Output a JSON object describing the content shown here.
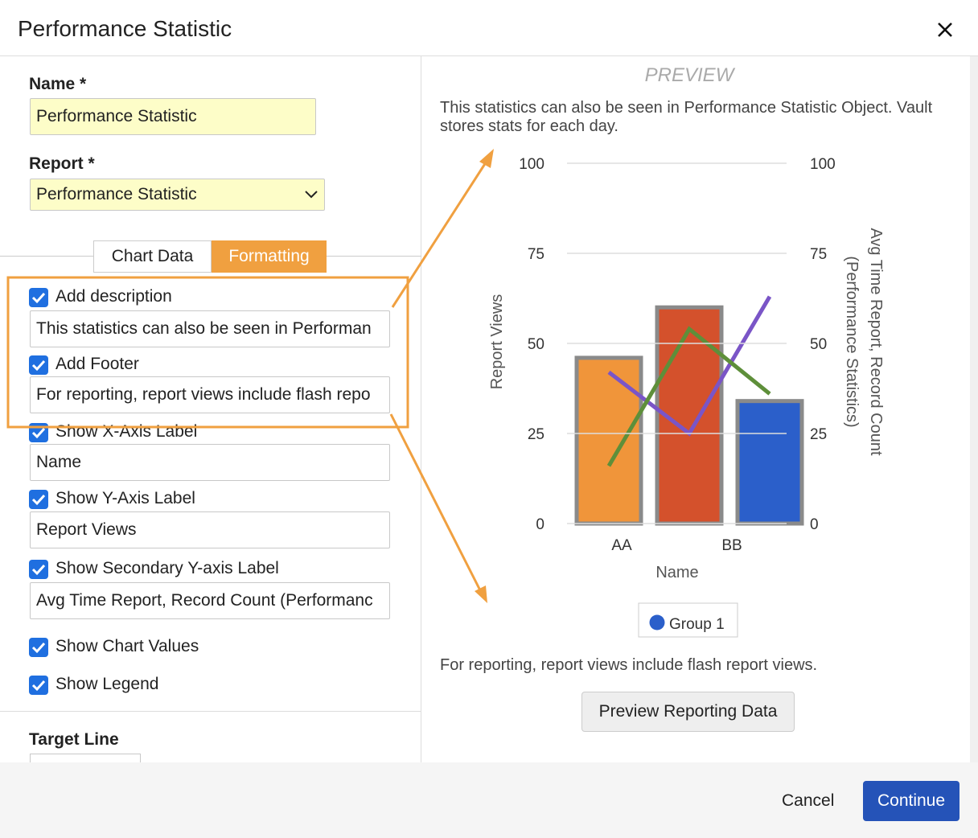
{
  "header": {
    "title": "Performance Statistic"
  },
  "form": {
    "name_label": "Name *",
    "name_value": "Performance Statistic",
    "report_label": "Report *",
    "report_value": "Performance Statistic",
    "tabs": [
      "Chart Data",
      "Formatting"
    ],
    "options": [
      {
        "label": "Add description",
        "input": "This statistics can also be seen in Performan"
      },
      {
        "label": "Add Footer",
        "input": "For reporting, report views include flash repo"
      },
      {
        "label": "Show X-Axis Label",
        "input": "Name"
      },
      {
        "label": "Show Y-Axis Label",
        "input": "Report Views"
      },
      {
        "label": "Show Secondary Y-axis Label",
        "input": "Avg Time Report, Record Count (Performanc"
      },
      {
        "label": "Show Chart Values"
      },
      {
        "label": "Show Legend"
      }
    ],
    "target_label": "Target Line"
  },
  "preview": {
    "title": "PREVIEW",
    "description": "This statistics can also be seen in Performance Statistic Object. Vault stores stats for each day.",
    "footer": "For reporting, report views include flash report views.",
    "button": "Preview Reporting Data"
  },
  "chart_data": {
    "type": "bar",
    "categories": [
      "AA",
      null,
      "BB"
    ],
    "xlabel": "Name",
    "ylabel": "Report Views",
    "y2label": [
      "Avg Time Report, Record Count",
      "(Performance Statistics)"
    ],
    "ylim": [
      0,
      100
    ],
    "yticks": [
      0,
      25,
      50,
      75,
      100
    ],
    "y2lim": [
      0,
      100
    ],
    "y2ticks": [
      0,
      25,
      50,
      75,
      100
    ],
    "grid": true,
    "series": [
      {
        "name": "Group 1",
        "type": "bar",
        "color": "#2b5fca",
        "colors": [
          "#f0953a",
          "#d4512c",
          "#2b5fca"
        ],
        "values": [
          46,
          60,
          34
        ]
      },
      {
        "type": "line",
        "axis": "y2",
        "color": "#7a55c7",
        "values": [
          42,
          25,
          63
        ]
      },
      {
        "type": "line",
        "axis": "y2",
        "color": "#5e8f3a",
        "values": [
          16,
          54,
          36
        ]
      }
    ]
  },
  "footer": {
    "cancel": "Cancel",
    "continue": "Continue"
  }
}
